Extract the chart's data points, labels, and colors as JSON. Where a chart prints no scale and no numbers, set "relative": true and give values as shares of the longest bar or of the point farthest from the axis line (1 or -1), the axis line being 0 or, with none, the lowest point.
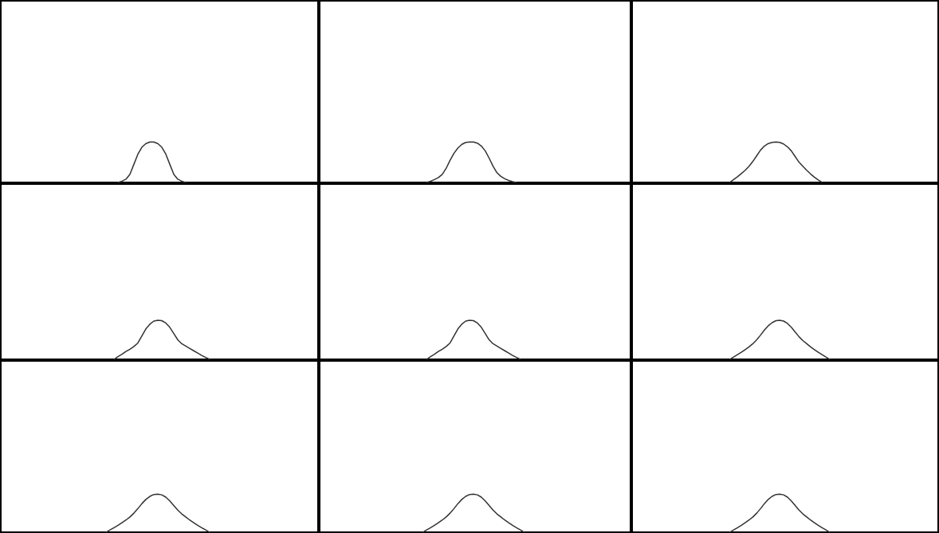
{
  "chart_data": [
    {
      "type": "line",
      "relative": true,
      "categories": [
        null,
        null,
        null,
        null,
        null,
        null,
        null,
        null,
        null,
        null,
        null,
        null,
        null,
        null,
        null,
        null,
        null,
        null,
        null,
        null,
        null,
        null,
        null,
        null,
        null,
        null,
        null,
        null,
        null,
        null,
        null,
        null,
        null,
        null,
        null,
        null,
        null,
        null,
        null,
        null,
        null,
        null,
        null,
        null,
        null,
        null,
        null,
        null,
        null,
        null,
        null,
        null,
        null,
        null,
        null,
        null,
        null,
        null,
        null,
        null,
        null,
        null,
        null,
        null,
        null,
        null,
        null,
        null,
        null,
        null,
        null,
        null,
        null,
        null,
        null,
        null,
        null,
        null,
        null,
        null
      ],
      "series": [
        {
          "color": "#333333",
          "values": [
            null,
            null,
            null,
            null,
            null,
            null,
            null,
            null,
            null,
            null,
            null,
            null,
            null,
            null,
            null,
            null,
            null,
            null,
            null,
            null,
            null,
            null,
            null,
            null,
            null,
            null,
            null,
            null,
            null,
            0,
            0.03,
            0.08,
            0.2,
            0.45,
            0.7,
            0.87,
            0.96,
            1,
            1,
            0.96,
            0.87,
            0.7,
            0.45,
            0.2,
            0.08,
            0.03,
            0,
            null,
            null,
            null,
            null,
            null,
            null,
            null,
            null,
            null,
            null,
            null,
            null,
            null,
            null,
            null,
            null,
            null,
            null,
            null,
            null,
            null,
            null,
            null,
            null,
            null,
            null,
            null,
            null,
            null,
            null,
            null,
            null,
            null
          ]
        }
      ]
    },
    {
      "type": "line",
      "relative": true,
      "categories": [
        null,
        null,
        null,
        null,
        null,
        null,
        null,
        null,
        null,
        null,
        null,
        null,
        null,
        null,
        null,
        null,
        null,
        null,
        null,
        null,
        null,
        null,
        null,
        null,
        null,
        null,
        null,
        null,
        null,
        null,
        null,
        null,
        null,
        null,
        null,
        null,
        null,
        null,
        null,
        null,
        null,
        null,
        null,
        null,
        null,
        null,
        null,
        null,
        null,
        null,
        null,
        null,
        null,
        null,
        null,
        null,
        null,
        null,
        null,
        null,
        null,
        null,
        null,
        null,
        null,
        null,
        null,
        null,
        null,
        null,
        null,
        null,
        null,
        null,
        null,
        null,
        null,
        null,
        null,
        null
      ],
      "series": [
        {
          "color": "#333333",
          "values": [
            null,
            null,
            null,
            null,
            null,
            null,
            null,
            null,
            null,
            null,
            null,
            null,
            null,
            null,
            null,
            null,
            null,
            null,
            null,
            null,
            null,
            null,
            null,
            null,
            null,
            null,
            null,
            0,
            0.03,
            0.07,
            0.12,
            0.2,
            0.35,
            0.55,
            0.72,
            0.85,
            0.94,
            0.99,
            1,
            1,
            0.97,
            0.9,
            0.78,
            0.6,
            0.4,
            0.24,
            0.15,
            0.09,
            0.05,
            0.02,
            0,
            null,
            null,
            null,
            null,
            null,
            null,
            null,
            null,
            null,
            null,
            null,
            null,
            null,
            null,
            null,
            null,
            null,
            null,
            null,
            null,
            null,
            null,
            null,
            null,
            null,
            null,
            null,
            null,
            null
          ]
        }
      ]
    },
    {
      "type": "line",
      "relative": true,
      "categories": [
        null,
        null,
        null,
        null,
        null,
        null,
        null,
        null,
        null,
        null,
        null,
        null,
        null,
        null,
        null,
        null,
        null,
        null,
        null,
        null,
        null,
        null,
        null,
        null,
        null,
        null,
        null,
        null,
        null,
        null,
        null,
        null,
        null,
        null,
        null,
        null,
        null,
        null,
        null,
        null,
        null,
        null,
        null,
        null,
        null,
        null,
        null,
        null,
        null,
        null,
        null,
        null,
        null,
        null,
        null,
        null,
        null,
        null,
        null,
        null,
        null,
        null,
        null,
        null,
        null,
        null,
        null,
        null,
        null,
        null,
        null,
        null,
        null,
        null,
        null,
        null,
        null,
        null,
        null,
        null
      ],
      "series": [
        {
          "color": "#333333",
          "values": [
            null,
            null,
            null,
            null,
            null,
            null,
            null,
            null,
            null,
            null,
            null,
            null,
            null,
            null,
            null,
            null,
            null,
            null,
            null,
            null,
            null,
            null,
            null,
            null,
            null,
            0,
            0.07,
            0.14,
            0.22,
            0.3,
            0.4,
            0.52,
            0.66,
            0.8,
            0.9,
            0.96,
            0.99,
            1,
            0.99,
            0.95,
            0.88,
            0.78,
            0.64,
            0.5,
            0.4,
            0.3,
            0.21,
            0.13,
            0.06,
            0,
            null,
            null,
            null,
            null,
            null,
            null,
            null,
            null,
            null,
            null,
            null,
            null,
            null,
            null,
            null,
            null,
            null,
            null,
            null,
            null,
            null,
            null,
            null,
            null,
            null,
            null,
            null,
            null,
            null,
            null
          ]
        }
      ]
    },
    {
      "type": "line",
      "relative": true,
      "categories": [
        null,
        null,
        null,
        null,
        null,
        null,
        null,
        null,
        null,
        null,
        null,
        null,
        null,
        null,
        null,
        null,
        null,
        null,
        null,
        null,
        null,
        null,
        null,
        null,
        null,
        null,
        null,
        null,
        null,
        null,
        null,
        null,
        null,
        null,
        null,
        null,
        null,
        null,
        null,
        null,
        null,
        null,
        null,
        null,
        null,
        null,
        null,
        null,
        null,
        null,
        null,
        null,
        null,
        null,
        null,
        null,
        null,
        null,
        null,
        null,
        null,
        null,
        null,
        null,
        null,
        null,
        null,
        null,
        null,
        null,
        null,
        null,
        null,
        null,
        null,
        null,
        null,
        null,
        null,
        null
      ],
      "series": [
        {
          "color": "#333333",
          "values": [
            null,
            null,
            null,
            null,
            null,
            null,
            null,
            null,
            null,
            null,
            null,
            null,
            null,
            null,
            null,
            null,
            null,
            null,
            null,
            null,
            null,
            null,
            null,
            null,
            null,
            null,
            null,
            null,
            0,
            0.07,
            0.13,
            0.2,
            0.26,
            0.33,
            0.42,
            0.6,
            0.78,
            0.9,
            0.98,
            1,
            0.99,
            0.93,
            0.82,
            0.66,
            0.5,
            0.4,
            0.34,
            0.28,
            0.22,
            0.16,
            0.1,
            0.05,
            0,
            null,
            null,
            null,
            null,
            null,
            null,
            null,
            null,
            null,
            null,
            null,
            null,
            null,
            null,
            null,
            null,
            null,
            null,
            null,
            null,
            null,
            null,
            null,
            null,
            null,
            null,
            null
          ]
        }
      ]
    },
    {
      "type": "line",
      "relative": true,
      "categories": [
        null,
        null,
        null,
        null,
        null,
        null,
        null,
        null,
        null,
        null,
        null,
        null,
        null,
        null,
        null,
        null,
        null,
        null,
        null,
        null,
        null,
        null,
        null,
        null,
        null,
        null,
        null,
        null,
        null,
        null,
        null,
        null,
        null,
        null,
        null,
        null,
        null,
        null,
        null,
        null,
        null,
        null,
        null,
        null,
        null,
        null,
        null,
        null,
        null,
        null,
        null,
        null,
        null,
        null,
        null,
        null,
        null,
        null,
        null,
        null,
        null,
        null,
        null,
        null,
        null,
        null,
        null,
        null,
        null,
        null,
        null,
        null,
        null,
        null,
        null,
        null,
        null,
        null,
        null,
        null
      ],
      "series": [
        {
          "color": "#333333",
          "values": [
            null,
            null,
            null,
            null,
            null,
            null,
            null,
            null,
            null,
            null,
            null,
            null,
            null,
            null,
            null,
            null,
            null,
            null,
            null,
            null,
            null,
            null,
            null,
            null,
            null,
            null,
            null,
            0,
            0.07,
            0.13,
            0.2,
            0.26,
            0.33,
            0.42,
            0.6,
            0.78,
            0.9,
            0.98,
            1,
            0.99,
            0.93,
            0.82,
            0.66,
            0.5,
            0.4,
            0.34,
            0.28,
            0.22,
            0.16,
            0.1,
            0.05,
            0,
            null,
            null,
            null,
            null,
            null,
            null,
            null,
            null,
            null,
            null,
            null,
            null,
            null,
            null,
            null,
            null,
            null,
            null,
            null,
            null,
            null,
            null,
            null,
            null,
            null,
            null,
            null,
            null
          ]
        }
      ]
    },
    {
      "type": "line",
      "relative": true,
      "categories": [
        null,
        null,
        null,
        null,
        null,
        null,
        null,
        null,
        null,
        null,
        null,
        null,
        null,
        null,
        null,
        null,
        null,
        null,
        null,
        null,
        null,
        null,
        null,
        null,
        null,
        null,
        null,
        null,
        null,
        null,
        null,
        null,
        null,
        null,
        null,
        null,
        null,
        null,
        null,
        null,
        null,
        null,
        null,
        null,
        null,
        null,
        null,
        null,
        null,
        null,
        null,
        null,
        null,
        null,
        null,
        null,
        null,
        null,
        null,
        null,
        null,
        null,
        null,
        null,
        null,
        null,
        null,
        null,
        null,
        null,
        null,
        null,
        null,
        null,
        null,
        null,
        null,
        null,
        null,
        null
      ],
      "series": [
        {
          "color": "#333333",
          "values": [
            null,
            null,
            null,
            null,
            null,
            null,
            null,
            null,
            null,
            null,
            null,
            null,
            null,
            null,
            null,
            null,
            null,
            null,
            null,
            null,
            null,
            null,
            null,
            null,
            null,
            0,
            0.06,
            0.12,
            0.18,
            0.25,
            0.32,
            0.4,
            0.5,
            0.62,
            0.75,
            0.86,
            0.94,
            0.99,
            1,
            0.98,
            0.92,
            0.82,
            0.7,
            0.58,
            0.48,
            0.4,
            0.32,
            0.25,
            0.18,
            0.12,
            0.06,
            0,
            null,
            null,
            null,
            null,
            null,
            null,
            null,
            null,
            null,
            null,
            null,
            null,
            null,
            null,
            null,
            null,
            null,
            null,
            null,
            null,
            null,
            null,
            null,
            null,
            null,
            null,
            null,
            null
          ]
        }
      ]
    },
    {
      "type": "line",
      "relative": true,
      "categories": [
        null,
        null,
        null,
        null,
        null,
        null,
        null,
        null,
        null,
        null,
        null,
        null,
        null,
        null,
        null,
        null,
        null,
        null,
        null,
        null,
        null,
        null,
        null,
        null,
        null,
        null,
        null,
        null,
        null,
        null,
        null,
        null,
        null,
        null,
        null,
        null,
        null,
        null,
        null,
        null,
        null,
        null,
        null,
        null,
        null,
        null,
        null,
        null,
        null,
        null,
        null,
        null,
        null,
        null,
        null,
        null,
        null,
        null,
        null,
        null,
        null,
        null,
        null,
        null,
        null,
        null,
        null,
        null,
        null,
        null,
        null,
        null,
        null,
        null,
        null,
        null,
        null,
        null,
        null,
        null
      ],
      "series": [
        {
          "color": "#333333",
          "values": [
            null,
            null,
            null,
            null,
            null,
            null,
            null,
            null,
            null,
            null,
            null,
            null,
            null,
            null,
            null,
            null,
            null,
            null,
            null,
            null,
            null,
            null,
            null,
            null,
            null,
            null,
            0,
            0.06,
            0.12,
            0.18,
            0.25,
            0.32,
            0.4,
            0.5,
            0.62,
            0.75,
            0.86,
            0.94,
            0.99,
            1,
            0.98,
            0.92,
            0.82,
            0.7,
            0.58,
            0.48,
            0.4,
            0.32,
            0.25,
            0.18,
            0.12,
            0.06,
            0,
            null,
            null,
            null,
            null,
            null,
            null,
            null,
            null,
            null,
            null,
            null,
            null,
            null,
            null,
            null,
            null,
            null,
            null,
            null,
            null,
            null,
            null,
            null,
            null,
            null,
            null,
            null
          ]
        }
      ]
    },
    {
      "type": "line",
      "relative": true,
      "categories": [
        null,
        null,
        null,
        null,
        null,
        null,
        null,
        null,
        null,
        null,
        null,
        null,
        null,
        null,
        null,
        null,
        null,
        null,
        null,
        null,
        null,
        null,
        null,
        null,
        null,
        null,
        null,
        null,
        null,
        null,
        null,
        null,
        null,
        null,
        null,
        null,
        null,
        null,
        null,
        null,
        null,
        null,
        null,
        null,
        null,
        null,
        null,
        null,
        null,
        null,
        null,
        null,
        null,
        null,
        null,
        null,
        null,
        null,
        null,
        null,
        null,
        null,
        null,
        null,
        null,
        null,
        null,
        null,
        null,
        null,
        null,
        null,
        null,
        null,
        null,
        null,
        null,
        null,
        null,
        null
      ],
      "series": [
        {
          "color": "#333333",
          "values": [
            null,
            null,
            null,
            null,
            null,
            null,
            null,
            null,
            null,
            null,
            null,
            null,
            null,
            null,
            null,
            null,
            null,
            null,
            null,
            null,
            null,
            null,
            null,
            null,
            null,
            null,
            0,
            0.06,
            0.12,
            0.18,
            0.25,
            0.32,
            0.4,
            0.5,
            0.62,
            0.75,
            0.86,
            0.94,
            0.99,
            1,
            0.98,
            0.92,
            0.82,
            0.7,
            0.58,
            0.48,
            0.4,
            0.32,
            0.25,
            0.18,
            0.12,
            0.06,
            0,
            null,
            null,
            null,
            null,
            null,
            null,
            null,
            null,
            null,
            null,
            null,
            null,
            null,
            null,
            null,
            null,
            null,
            null,
            null,
            null,
            null,
            null,
            null,
            null,
            null,
            null,
            null
          ]
        }
      ]
    },
    {
      "type": "line",
      "relative": true,
      "categories": [
        null,
        null,
        null,
        null,
        null,
        null,
        null,
        null,
        null,
        null,
        null,
        null,
        null,
        null,
        null,
        null,
        null,
        null,
        null,
        null,
        null,
        null,
        null,
        null,
        null,
        null,
        null,
        null,
        null,
        null,
        null,
        null,
        null,
        null,
        null,
        null,
        null,
        null,
        null,
        null,
        null,
        null,
        null,
        null,
        null,
        null,
        null,
        null,
        null,
        null,
        null,
        null,
        null,
        null,
        null,
        null,
        null,
        null,
        null,
        null,
        null,
        null,
        null,
        null,
        null,
        null,
        null,
        null,
        null,
        null,
        null,
        null,
        null,
        null,
        null,
        null,
        null,
        null,
        null,
        null
      ],
      "series": [
        {
          "color": "#333333",
          "values": [
            null,
            null,
            null,
            null,
            null,
            null,
            null,
            null,
            null,
            null,
            null,
            null,
            null,
            null,
            null,
            null,
            null,
            null,
            null,
            null,
            null,
            null,
            null,
            null,
            null,
            0,
            0.06,
            0.12,
            0.18,
            0.25,
            0.32,
            0.4,
            0.5,
            0.62,
            0.75,
            0.86,
            0.94,
            0.99,
            1,
            0.98,
            0.92,
            0.82,
            0.7,
            0.58,
            0.48,
            0.4,
            0.32,
            0.25,
            0.18,
            0.12,
            0.06,
            0,
            null,
            null,
            null,
            null,
            null,
            null,
            null,
            null,
            null,
            null,
            null,
            null,
            null,
            null,
            null,
            null,
            null,
            null,
            null,
            null,
            null,
            null,
            null,
            null,
            null,
            null,
            null,
            null
          ]
        }
      ]
    }
  ]
}
